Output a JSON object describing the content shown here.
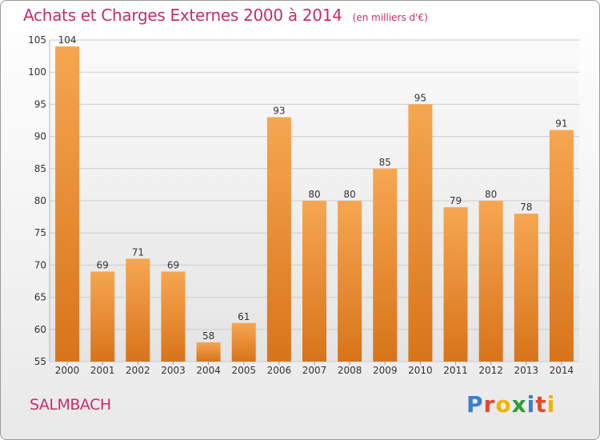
{
  "header": {
    "title": "Achats et Charges Externes 2000 à 2014",
    "subtitle": "(en milliers d'€)"
  },
  "footer": {
    "commune": "SALMBACH",
    "logo_text": "Proxiti",
    "logo_colors": [
      "#3a7fcf",
      "#e8462a",
      "#f0b400",
      "#2e9e3a",
      "#3a7fcf",
      "#e8462a",
      "#f0b400"
    ]
  },
  "chart_data": {
    "type": "bar",
    "title": "Achats et Charges Externes 2000 à 2014",
    "subtitle": "(en milliers d'€)",
    "categories": [
      "2000",
      "2001",
      "2002",
      "2003",
      "2004",
      "2005",
      "2006",
      "2007",
      "2008",
      "2009",
      "2010",
      "2011",
      "2012",
      "2013",
      "2014"
    ],
    "values": [
      104,
      69,
      71,
      69,
      58,
      61,
      93,
      80,
      80,
      85,
      95,
      79,
      80,
      78,
      91
    ],
    "ylim": [
      55,
      105
    ],
    "yticks": [
      55,
      60,
      65,
      70,
      75,
      80,
      85,
      90,
      95,
      100,
      105
    ],
    "grid": true,
    "xlabel": "",
    "ylabel": "",
    "colors": {
      "bar_top": "#f6a651",
      "bar_bottom": "#d8741a",
      "grid": "#cccccc",
      "axis_text": "#333333"
    }
  }
}
